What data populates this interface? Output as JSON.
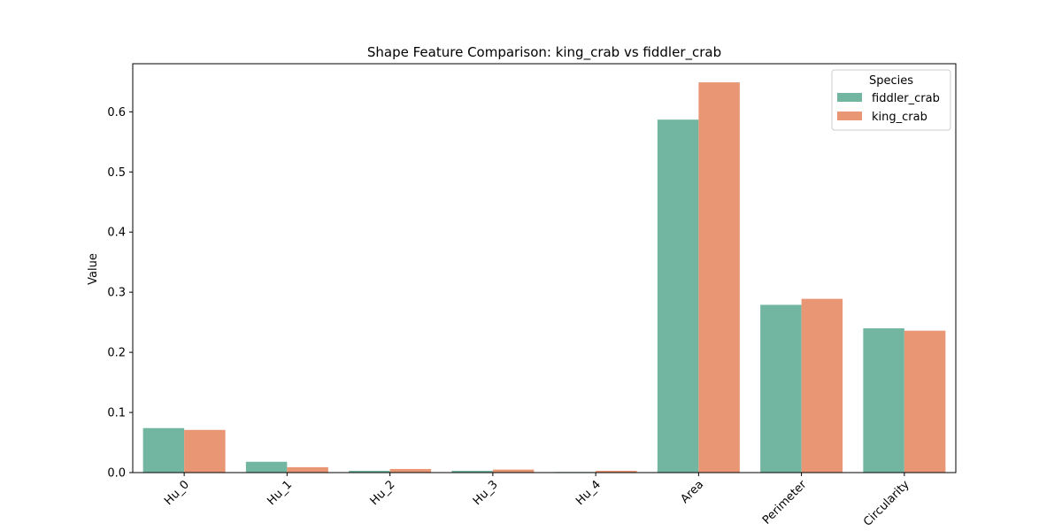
{
  "chart_data": {
    "type": "bar",
    "title": "Shape Feature Comparison: king_crab vs fiddler_crab",
    "xlabel": "",
    "ylabel": "Value",
    "categories": [
      "Hu_0",
      "Hu_1",
      "Hu_2",
      "Hu_3",
      "Hu_4",
      "Area",
      "Perimeter",
      "Circularity"
    ],
    "series": [
      {
        "name": "fiddler_crab",
        "color": "#72b6a1",
        "values": [
          0.074,
          0.018,
          0.003,
          0.003,
          0.001,
          0.587,
          0.279,
          0.24
        ]
      },
      {
        "name": "king_crab",
        "color": "#e99675",
        "values": [
          0.071,
          0.009,
          0.006,
          0.005,
          0.003,
          0.649,
          0.289,
          0.236
        ]
      }
    ],
    "ylim": [
      0,
      0.68
    ],
    "yticks": [
      "0.0",
      "0.1",
      "0.2",
      "0.3",
      "0.4",
      "0.5",
      "0.6"
    ],
    "grid": false,
    "legend": {
      "title": "Species",
      "placement": "top-right"
    }
  }
}
